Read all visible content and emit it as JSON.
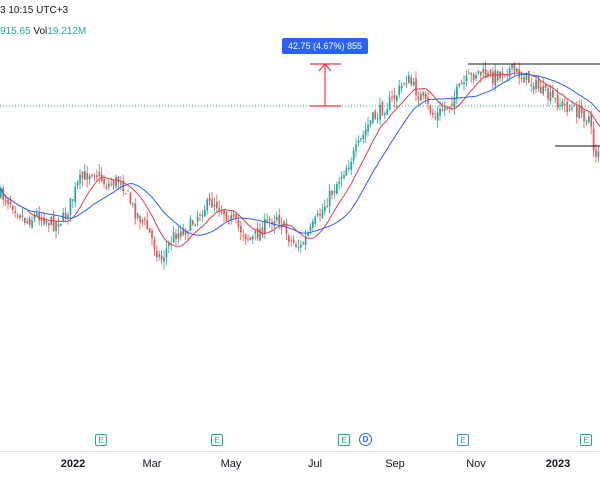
{
  "header": {
    "time_text": "3 10:15 UTC+3",
    "price_text": "915.65",
    "vol_label": "Vol",
    "vol_text": "19.212M"
  },
  "measure": {
    "label": "42.75 (4.67%) 855"
  },
  "colors": {
    "up": "#26a69a",
    "down": "#ef5350",
    "ma_fast": "#f23645",
    "ma_slow": "#2962ff",
    "measure": "#f23645",
    "hline": "#26a69a"
  },
  "icons": {
    "earnings": "E",
    "dividend": "D"
  },
  "axis": {
    "ticks": [
      {
        "label": "2022",
        "bold": true
      },
      {
        "label": "Mar",
        "bold": false
      },
      {
        "label": "May",
        "bold": false
      },
      {
        "label": "Jul",
        "bold": false
      },
      {
        "label": "Sep",
        "bold": false
      },
      {
        "label": "Nov",
        "bold": false
      },
      {
        "label": "2023",
        "bold": true
      }
    ]
  },
  "chart_data": {
    "type": "candlestick",
    "price_path": [
      [
        0,
        60
      ],
      [
        10,
        58
      ],
      [
        25,
        52
      ],
      [
        38,
        54
      ],
      [
        52,
        51
      ],
      [
        64,
        53
      ],
      [
        78,
        64
      ],
      [
        92,
        68
      ],
      [
        106,
        63
      ],
      [
        120,
        65
      ],
      [
        132,
        56
      ],
      [
        146,
        50
      ],
      [
        160,
        40
      ],
      [
        174,
        48
      ],
      [
        188,
        50
      ],
      [
        202,
        56
      ],
      [
        214,
        58
      ],
      [
        226,
        54
      ],
      [
        238,
        50
      ],
      [
        250,
        46
      ],
      [
        262,
        50
      ],
      [
        276,
        54
      ],
      [
        290,
        46
      ],
      [
        300,
        44
      ],
      [
        312,
        50
      ],
      [
        326,
        58
      ],
      [
        340,
        66
      ],
      [
        356,
        74
      ],
      [
        368,
        82
      ],
      [
        380,
        86
      ],
      [
        394,
        90
      ],
      [
        406,
        96
      ],
      [
        420,
        90
      ],
      [
        434,
        84
      ],
      [
        448,
        88
      ],
      [
        462,
        94
      ],
      [
        476,
        98
      ],
      [
        490,
        96
      ],
      [
        506,
        99
      ],
      [
        520,
        97
      ],
      [
        534,
        94
      ],
      [
        548,
        90
      ],
      [
        560,
        88
      ],
      [
        574,
        86
      ],
      [
        588,
        84
      ],
      [
        594,
        72
      ],
      [
        600,
        76
      ]
    ]
  }
}
